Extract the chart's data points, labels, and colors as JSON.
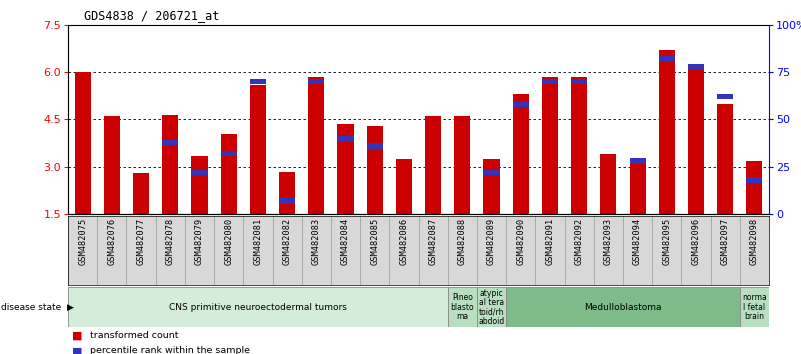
{
  "title": "GDS4838 / 206721_at",
  "samples": [
    "GSM482075",
    "GSM482076",
    "GSM482077",
    "GSM482078",
    "GSM482079",
    "GSM482080",
    "GSM482081",
    "GSM482082",
    "GSM482083",
    "GSM482084",
    "GSM482085",
    "GSM482086",
    "GSM482087",
    "GSM482088",
    "GSM482089",
    "GSM482090",
    "GSM482091",
    "GSM482092",
    "GSM482093",
    "GSM482094",
    "GSM482095",
    "GSM482096",
    "GSM482097",
    "GSM482098"
  ],
  "transformed_count": [
    6.0,
    4.6,
    2.8,
    4.65,
    3.35,
    4.05,
    5.6,
    2.85,
    5.85,
    4.35,
    4.3,
    3.25,
    4.6,
    4.6,
    3.25,
    5.3,
    5.85,
    5.85,
    3.4,
    3.2,
    6.7,
    6.25,
    5.0,
    3.2
  ],
  "percentile_rank": [
    null,
    null,
    null,
    38,
    22,
    32,
    70,
    7,
    70,
    40,
    36,
    null,
    null,
    null,
    22,
    58,
    70,
    70,
    null,
    28,
    82,
    78,
    62,
    18
  ],
  "ylim_left": [
    1.5,
    7.5
  ],
  "ylim_right": [
    0,
    100
  ],
  "yticks_left": [
    1.5,
    3.0,
    4.5,
    6.0,
    7.5
  ],
  "yticks_right": [
    0,
    25,
    50,
    75,
    100
  ],
  "bar_color_red": "#cc0000",
  "bar_color_blue": "#3333bb",
  "disease_groups": [
    {
      "label": "CNS primitive neuroectodermal tumors",
      "start": 0,
      "end": 13,
      "color": "#d4edda"
    },
    {
      "label": "Pineo\nblasto\nma",
      "start": 13,
      "end": 14,
      "color": "#b8dfc0"
    },
    {
      "label": "atypic\nal tera\ntoid/rh\nabdoid",
      "start": 14,
      "end": 15,
      "color": "#b8dfc0"
    },
    {
      "label": "Medulloblastoma",
      "start": 15,
      "end": 23,
      "color": "#7dbb8a"
    },
    {
      "label": "norma\nl fetal\nbrain",
      "start": 23,
      "end": 24,
      "color": "#b8dfc0"
    }
  ],
  "legend_red": "transformed count",
  "legend_blue": "percentile rank within the sample",
  "disease_state_label": "disease state"
}
